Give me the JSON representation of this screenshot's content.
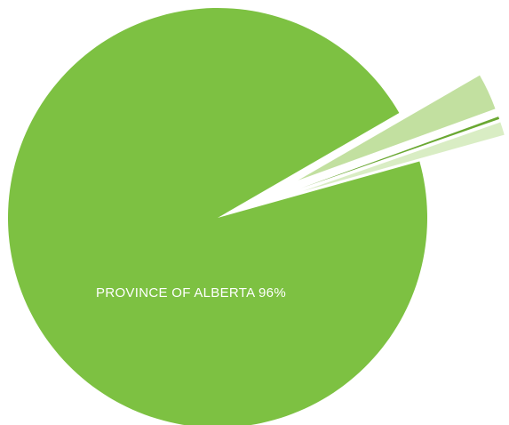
{
  "chart_data": {
    "type": "pie",
    "categories": [
      null,
      null,
      null,
      null
    ],
    "values": [
      96,
      1.0,
      0.2,
      2.8
    ],
    "value_labels": [
      "PROVINCE OF ALBERTA 96%",
      null,
      null,
      null
    ],
    "colors": [
      "#7dc142",
      "#d9edc4",
      "#6aa832",
      "#c2e0a0"
    ]
  }
}
